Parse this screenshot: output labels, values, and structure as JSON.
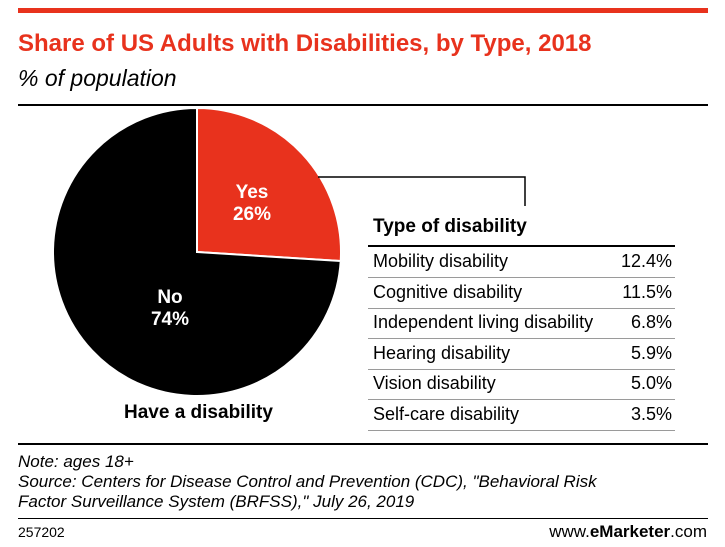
{
  "header": {
    "title": "Share of US Adults with Disabilities, by Type, 2018",
    "subtitle": "% of population"
  },
  "chart_data": {
    "type": "pie",
    "caption": "Have a disability",
    "slices": [
      {
        "label": "Yes",
        "value": 26,
        "value_label": "26%",
        "color": "#e8321d"
      },
      {
        "label": "No",
        "value": 74,
        "value_label": "74%",
        "color": "#000000"
      }
    ],
    "breakdown": {
      "title": "Type of disability",
      "rows": [
        {
          "label": "Mobility disability",
          "value": 12.4,
          "value_label": "12.4%"
        },
        {
          "label": "Cognitive disability",
          "value": 11.5,
          "value_label": "11.5%"
        },
        {
          "label": "Independent living disability",
          "value": 6.8,
          "value_label": "6.8%"
        },
        {
          "label": "Hearing disability",
          "value": 5.9,
          "value_label": "5.9%"
        },
        {
          "label": "Vision disability",
          "value": 5.0,
          "value_label": "5.0%"
        },
        {
          "label": "Self-care disability",
          "value": 3.5,
          "value_label": "3.5%"
        }
      ]
    }
  },
  "footer": {
    "note": "Note: ages 18+",
    "source_line1": "Source: Centers for Disease Control and Prevention (CDC), \"Behavioral Risk",
    "source_line2": "Factor Surveillance System (BRFSS),\" July 26, 2019",
    "chart_id": "257202",
    "brand_prefix": "www.",
    "brand_name": "eMarketer",
    "brand_suffix": ".com"
  }
}
